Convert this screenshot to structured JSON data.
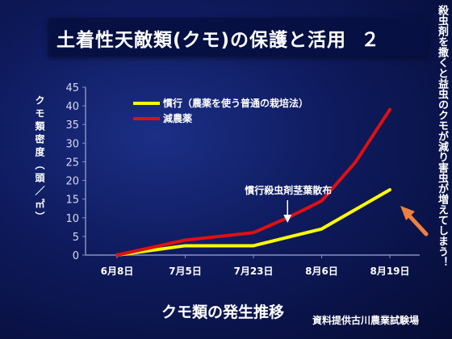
{
  "title_main": "土着性天敵類(クモ)の保護と活用",
  "title_num": "２",
  "side_note": "殺虫剤を撒くと益虫のクモが減り害虫が増えてしまう！",
  "bottom_title": "クモ類の発生推移",
  "credit": "資料提供古川農業試験場",
  "chart_data": {
    "type": "line",
    "ylabel": "クモ類密度（頭／㎡）",
    "xlabel": "",
    "ylim": [
      0,
      45
    ],
    "yticks": [
      "0",
      "5",
      "10",
      "15",
      "20",
      "25",
      "30",
      "35",
      "40",
      "45"
    ],
    "categories": [
      "6月8日",
      "7月5日",
      "7月23日",
      "8月6日",
      "8月19日"
    ],
    "grid": false,
    "legend_position": "top-left",
    "series": [
      {
        "name": "慣行（農薬を使う普通の栽培法）",
        "color": "#ffff00",
        "x": [
          0,
          1,
          2,
          3,
          4
        ],
        "values": [
          0,
          2.5,
          2.5,
          7,
          17.5
        ]
      },
      {
        "name": "減農薬",
        "color": "#e01010",
        "x": [
          0,
          1,
          2,
          2.5,
          3,
          3.5,
          4
        ],
        "values": [
          0,
          4,
          6,
          10,
          14.5,
          25,
          39
        ]
      }
    ],
    "annotation": {
      "text": "慣行殺虫剤茎葉散布",
      "x": 2.5
    }
  },
  "colors": {
    "arrow": "#f08040",
    "axis": "#8890c0"
  }
}
